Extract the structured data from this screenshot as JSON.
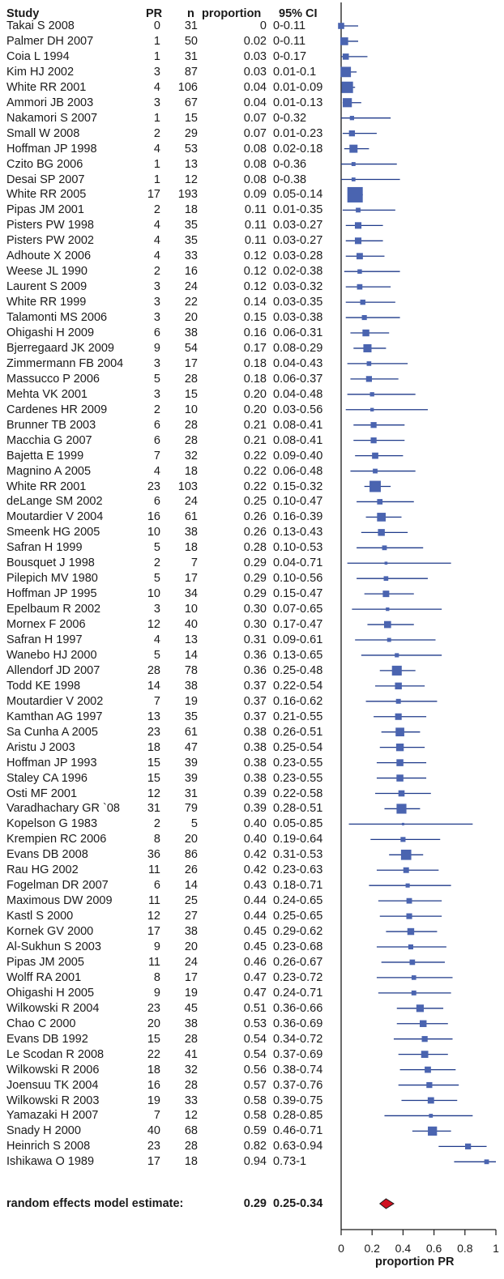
{
  "chart_data": {
    "type": "forest",
    "headers": {
      "study": "Study",
      "pr": "PR",
      "n": "n",
      "proportion": "proportion",
      "ci": "95% CI"
    },
    "studies": [
      {
        "study": "Takai S  2008",
        "pr": "0",
        "n": "31",
        "proportion_label": "0",
        "ci_label": "0-0.11",
        "p": 0,
        "lo": 0,
        "hi": 0.11
      },
      {
        "study": "Palmer DH  2007",
        "pr": "1",
        "n": "50",
        "proportion_label": "0.02",
        "ci_label": "0-0.11",
        "p": 0.02,
        "lo": 0,
        "hi": 0.11
      },
      {
        "study": "Coia L  1994",
        "pr": "1",
        "n": "31",
        "proportion_label": "0.03",
        "ci_label": "0-0.17",
        "p": 0.03,
        "lo": 0,
        "hi": 0.17
      },
      {
        "study": "Kim HJ  2002",
        "pr": "3",
        "n": "87",
        "proportion_label": "0.03",
        "ci_label": "0.01-0.1",
        "p": 0.03,
        "lo": 0.01,
        "hi": 0.1
      },
      {
        "study": "White RR  2001",
        "pr": "4",
        "n": "106",
        "proportion_label": "0.04",
        "ci_label": "0.01-0.09",
        "p": 0.04,
        "lo": 0.01,
        "hi": 0.09
      },
      {
        "study": "Ammori JB  2003",
        "pr": "3",
        "n": "67",
        "proportion_label": "0.04",
        "ci_label": "0.01-0.13",
        "p": 0.04,
        "lo": 0.01,
        "hi": 0.13
      },
      {
        "study": "Nakamori S  2007",
        "pr": "1",
        "n": "15",
        "proportion_label": "0.07",
        "ci_label": "0-0.32",
        "p": 0.07,
        "lo": 0,
        "hi": 0.32
      },
      {
        "study": "Small W  2008",
        "pr": "2",
        "n": "29",
        "proportion_label": "0.07",
        "ci_label": "0.01-0.23",
        "p": 0.07,
        "lo": 0.01,
        "hi": 0.23
      },
      {
        "study": "Hoffman JP  1998",
        "pr": "4",
        "n": "53",
        "proportion_label": "0.08",
        "ci_label": "0.02-0.18",
        "p": 0.08,
        "lo": 0.02,
        "hi": 0.18
      },
      {
        "study": "Czito BG  2006",
        "pr": "1",
        "n": "13",
        "proportion_label": "0.08",
        "ci_label": "0-0.36",
        "p": 0.08,
        "lo": 0,
        "hi": 0.36
      },
      {
        "study": "Desai SP  2007",
        "pr": "1",
        "n": "12",
        "proportion_label": "0.08",
        "ci_label": "0-0.38",
        "p": 0.08,
        "lo": 0,
        "hi": 0.38
      },
      {
        "study": "White RR    2005",
        "pr": "17",
        "n": "193",
        "proportion_label": "0.09",
        "ci_label": "0.05-0.14",
        "p": 0.09,
        "lo": 0.05,
        "hi": 0.14
      },
      {
        "study": "Pipas JM  2001",
        "pr": "2",
        "n": "18",
        "proportion_label": "0.11",
        "ci_label": "0.01-0.35",
        "p": 0.11,
        "lo": 0.01,
        "hi": 0.35
      },
      {
        "study": "Pisters PW  1998",
        "pr": "4",
        "n": "35",
        "proportion_label": "0.11",
        "ci_label": "0.03-0.27",
        "p": 0.11,
        "lo": 0.03,
        "hi": 0.27
      },
      {
        "study": "Pisters PW  2002",
        "pr": "4",
        "n": "35",
        "proportion_label": "0.11",
        "ci_label": "0.03-0.27",
        "p": 0.11,
        "lo": 0.03,
        "hi": 0.27
      },
      {
        "study": "Adhoute X   2006",
        "pr": "4",
        "n": "33",
        "proportion_label": "0.12",
        "ci_label": "0.03-0.28",
        "p": 0.12,
        "lo": 0.03,
        "hi": 0.28
      },
      {
        "study": "Weese JL  1990",
        "pr": "2",
        "n": "16",
        "proportion_label": "0.12",
        "ci_label": "0.02-0.38",
        "p": 0.12,
        "lo": 0.02,
        "hi": 0.38
      },
      {
        "study": "Laurent S  2009",
        "pr": "3",
        "n": "24",
        "proportion_label": "0.12",
        "ci_label": "0.03-0.32",
        "p": 0.12,
        "lo": 0.03,
        "hi": 0.32
      },
      {
        "study": "White RR  1999",
        "pr": "3",
        "n": "22",
        "proportion_label": "0.14",
        "ci_label": "0.03-0.35",
        "p": 0.14,
        "lo": 0.03,
        "hi": 0.35
      },
      {
        "study": "Talamonti MS  2006",
        "pr": "3",
        "n": "20",
        "proportion_label": "0.15",
        "ci_label": "0.03-0.38",
        "p": 0.15,
        "lo": 0.03,
        "hi": 0.38
      },
      {
        "study": "Ohigashi H  2009",
        "pr": "6",
        "n": "38",
        "proportion_label": "0.16",
        "ci_label": "0.06-0.31",
        "p": 0.16,
        "lo": 0.06,
        "hi": 0.31
      },
      {
        "study": "Bjerregaard JK  2009",
        "pr": "9",
        "n": "54",
        "proportion_label": "0.17",
        "ci_label": "0.08-0.29",
        "p": 0.17,
        "lo": 0.08,
        "hi": 0.29
      },
      {
        "study": "Zimmermann FB  2004",
        "pr": "3",
        "n": "17",
        "proportion_label": "0.18",
        "ci_label": "0.04-0.43",
        "p": 0.18,
        "lo": 0.04,
        "hi": 0.43
      },
      {
        "study": "Massucco P  2006",
        "pr": "5",
        "n": "28",
        "proportion_label": "0.18",
        "ci_label": "0.06-0.37",
        "p": 0.18,
        "lo": 0.06,
        "hi": 0.37
      },
      {
        "study": "Mehta  VK  2001",
        "pr": "3",
        "n": "15",
        "proportion_label": "0.20",
        "ci_label": "0.04-0.48",
        "p": 0.2,
        "lo": 0.04,
        "hi": 0.48
      },
      {
        "study": "Cardenes HR  2009",
        "pr": "2",
        "n": "10",
        "proportion_label": "0.20",
        "ci_label": "0.03-0.56",
        "p": 0.2,
        "lo": 0.03,
        "hi": 0.56
      },
      {
        "study": "Brunner TB  2003",
        "pr": "6",
        "n": "28",
        "proportion_label": "0.21",
        "ci_label": "0.08-0.41",
        "p": 0.21,
        "lo": 0.08,
        "hi": 0.41
      },
      {
        "study": "Macchia G  2007",
        "pr": "6",
        "n": "28",
        "proportion_label": "0.21",
        "ci_label": "0.08-0.41",
        "p": 0.21,
        "lo": 0.08,
        "hi": 0.41
      },
      {
        "study": "Bajetta E  1999",
        "pr": "7",
        "n": "32",
        "proportion_label": "0.22",
        "ci_label": "0.09-0.40",
        "p": 0.22,
        "lo": 0.09,
        "hi": 0.4
      },
      {
        "study": "Magnino A  2005",
        "pr": "4",
        "n": "18",
        "proportion_label": "0.22",
        "ci_label": "0.06-0.48",
        "p": 0.22,
        "lo": 0.06,
        "hi": 0.48
      },
      {
        "study": "White RR  2001",
        "pr": "23",
        "n": "103",
        "proportion_label": "0.22",
        "ci_label": "0.15-0.32",
        "p": 0.22,
        "lo": 0.15,
        "hi": 0.32
      },
      {
        "study": "deLange SM  2002",
        "pr": "6",
        "n": "24",
        "proportion_label": "0.25",
        "ci_label": "0.10-0.47",
        "p": 0.25,
        "lo": 0.1,
        "hi": 0.47
      },
      {
        "study": "Moutardier V  2004",
        "pr": "16",
        "n": "61",
        "proportion_label": "0.26",
        "ci_label": "0.16-0.39",
        "p": 0.26,
        "lo": 0.16,
        "hi": 0.39
      },
      {
        "study": "Smeenk HG  2005",
        "pr": "10",
        "n": "38",
        "proportion_label": "0.26",
        "ci_label": "0.13-0.43",
        "p": 0.26,
        "lo": 0.13,
        "hi": 0.43
      },
      {
        "study": "Safran H   1999",
        "pr": "5",
        "n": "18",
        "proportion_label": "0.28",
        "ci_label": "0.10-0.53",
        "p": 0.28,
        "lo": 0.1,
        "hi": 0.53
      },
      {
        "study": "Bousquet J  1998",
        "pr": "2",
        "n": "7",
        "proportion_label": "0.29",
        "ci_label": "0.04-0.71",
        "p": 0.29,
        "lo": 0.04,
        "hi": 0.71
      },
      {
        "study": "Pilepich MV   1980",
        "pr": "5",
        "n": "17",
        "proportion_label": "0.29",
        "ci_label": "0.10-0.56",
        "p": 0.29,
        "lo": 0.1,
        "hi": 0.56
      },
      {
        "study": "Hoffman JP  1995",
        "pr": "10",
        "n": "34",
        "proportion_label": "0.29",
        "ci_label": "0.15-0.47",
        "p": 0.29,
        "lo": 0.15,
        "hi": 0.47
      },
      {
        "study": "Epelbaum R  2002",
        "pr": "3",
        "n": "10",
        "proportion_label": "0.30",
        "ci_label": "0.07-0.65",
        "p": 0.3,
        "lo": 0.07,
        "hi": 0.65
      },
      {
        "study": "Mornex F  2006",
        "pr": "12",
        "n": "40",
        "proportion_label": "0.30",
        "ci_label": "0.17-0.47",
        "p": 0.3,
        "lo": 0.17,
        "hi": 0.47
      },
      {
        "study": "Safran H  1997",
        "pr": "4",
        "n": "13",
        "proportion_label": "0.31",
        "ci_label": "0.09-0.61",
        "p": 0.31,
        "lo": 0.09,
        "hi": 0.61
      },
      {
        "study": "Wanebo HJ  2000",
        "pr": "5",
        "n": "14",
        "proportion_label": "0.36",
        "ci_label": "0.13-0.65",
        "p": 0.36,
        "lo": 0.13,
        "hi": 0.65
      },
      {
        "study": "Allendorf JD  2007",
        "pr": "28",
        "n": "78",
        "proportion_label": "0.36",
        "ci_label": "0.25-0.48",
        "p": 0.36,
        "lo": 0.25,
        "hi": 0.48
      },
      {
        "study": "Todd KE  1998",
        "pr": "14",
        "n": "38",
        "proportion_label": "0.37",
        "ci_label": "0.22-0.54",
        "p": 0.37,
        "lo": 0.22,
        "hi": 0.54
      },
      {
        "study": "Moutardier V  2002",
        "pr": "7",
        "n": "19",
        "proportion_label": "0.37",
        "ci_label": "0.16-0.62",
        "p": 0.37,
        "lo": 0.16,
        "hi": 0.62
      },
      {
        "study": "Kamthan AG  1997",
        "pr": "13",
        "n": "35",
        "proportion_label": "0.37",
        "ci_label": "0.21-0.55",
        "p": 0.37,
        "lo": 0.21,
        "hi": 0.55
      },
      {
        "study": "Sa Cunha A  2005",
        "pr": "23",
        "n": "61",
        "proportion_label": "0.38",
        "ci_label": "0.26-0.51",
        "p": 0.38,
        "lo": 0.26,
        "hi": 0.51
      },
      {
        "study": "Aristu J  2003",
        "pr": "18",
        "n": "47",
        "proportion_label": "0.38",
        "ci_label": "0.25-0.54",
        "p": 0.38,
        "lo": 0.25,
        "hi": 0.54
      },
      {
        "study": "Hoffman JP  1993",
        "pr": "15",
        "n": "39",
        "proportion_label": "0.38",
        "ci_label": "0.23-0.55",
        "p": 0.38,
        "lo": 0.23,
        "hi": 0.55
      },
      {
        "study": "Staley CA  1996",
        "pr": "15",
        "n": "39",
        "proportion_label": "0.38",
        "ci_label": "0.23-0.55",
        "p": 0.38,
        "lo": 0.23,
        "hi": 0.55
      },
      {
        "study": "Osti MF  2001",
        "pr": "12",
        "n": "31",
        "proportion_label": "0.39",
        "ci_label": "0.22-0.58",
        "p": 0.39,
        "lo": 0.22,
        "hi": 0.58
      },
      {
        "study": "Varadhachary GR  `08",
        "pr": "31",
        "n": "79",
        "proportion_label": "0.39",
        "ci_label": "0.28-0.51",
        "p": 0.39,
        "lo": 0.28,
        "hi": 0.51
      },
      {
        "study": "Kopelson G  1983",
        "pr": "2",
        "n": "5",
        "proportion_label": "0.40",
        "ci_label": "0.05-0.85",
        "p": 0.4,
        "lo": 0.05,
        "hi": 0.85
      },
      {
        "study": "Krempien RC  2006",
        "pr": "8",
        "n": "20",
        "proportion_label": "0.40",
        "ci_label": "0.19-0.64",
        "p": 0.4,
        "lo": 0.19,
        "hi": 0.64
      },
      {
        "study": "Evans DB  2008",
        "pr": "36",
        "n": "86",
        "proportion_label": "0.42",
        "ci_label": "0.31-0.53",
        "p": 0.42,
        "lo": 0.31,
        "hi": 0.53
      },
      {
        "study": "Rau HG  2002",
        "pr": "11",
        "n": "26",
        "proportion_label": "0.42",
        "ci_label": "0.23-0.63",
        "p": 0.42,
        "lo": 0.23,
        "hi": 0.63
      },
      {
        "study": "Fogelman DR  2007",
        "pr": "6",
        "n": "14",
        "proportion_label": "0.43",
        "ci_label": "0.18-0.71",
        "p": 0.43,
        "lo": 0.18,
        "hi": 0.71
      },
      {
        "study": "Maximous DW  2009",
        "pr": "11",
        "n": "25",
        "proportion_label": "0.44",
        "ci_label": "0.24-0.65",
        "p": 0.44,
        "lo": 0.24,
        "hi": 0.65
      },
      {
        "study": "Kastl S  2000",
        "pr": "12",
        "n": "27",
        "proportion_label": "0.44",
        "ci_label": "0.25-0.65",
        "p": 0.44,
        "lo": 0.25,
        "hi": 0.65
      },
      {
        "study": "Kornek GV  2000",
        "pr": "17",
        "n": "38",
        "proportion_label": "0.45",
        "ci_label": "0.29-0.62",
        "p": 0.45,
        "lo": 0.29,
        "hi": 0.62
      },
      {
        "study": "Al-Sukhun S  2003",
        "pr": "9",
        "n": "20",
        "proportion_label": "0.45",
        "ci_label": "0.23-0.68",
        "p": 0.45,
        "lo": 0.23,
        "hi": 0.68
      },
      {
        "study": "Pipas JM  2005",
        "pr": "11",
        "n": "24",
        "proportion_label": "0.46",
        "ci_label": "0.26-0.67",
        "p": 0.46,
        "lo": 0.26,
        "hi": 0.67
      },
      {
        "study": "Wolff RA  2001",
        "pr": "8",
        "n": "17",
        "proportion_label": "0.47",
        "ci_label": "0.23-0.72",
        "p": 0.47,
        "lo": 0.23,
        "hi": 0.72
      },
      {
        "study": "Ohigashi H  2005",
        "pr": "9",
        "n": "19",
        "proportion_label": "0.47",
        "ci_label": "0.24-0.71",
        "p": 0.47,
        "lo": 0.24,
        "hi": 0.71
      },
      {
        "study": "Wilkowski R  2004",
        "pr": "23",
        "n": "45",
        "proportion_label": "0.51",
        "ci_label": "0.36-0.66",
        "p": 0.51,
        "lo": 0.36,
        "hi": 0.66
      },
      {
        "study": "Chao C  2000",
        "pr": "20",
        "n": "38",
        "proportion_label": "0.53",
        "ci_label": "0.36-0.69",
        "p": 0.53,
        "lo": 0.36,
        "hi": 0.69
      },
      {
        "study": "Evans DB   1992",
        "pr": "15",
        "n": "28",
        "proportion_label": "0.54",
        "ci_label": "0.34-0.72",
        "p": 0.54,
        "lo": 0.34,
        "hi": 0.72
      },
      {
        "study": "Le Scodan R  2008",
        "pr": "22",
        "n": "41",
        "proportion_label": "0.54",
        "ci_label": "0.37-0.69",
        "p": 0.54,
        "lo": 0.37,
        "hi": 0.69
      },
      {
        "study": "Wilkowski R  2006",
        "pr": "18",
        "n": "32",
        "proportion_label": "0.56",
        "ci_label": "0.38-0.74",
        "p": 0.56,
        "lo": 0.38,
        "hi": 0.74
      },
      {
        "study": "Joensuu TK  2004",
        "pr": "16",
        "n": "28",
        "proportion_label": "0.57",
        "ci_label": "0.37-0.76",
        "p": 0.57,
        "lo": 0.37,
        "hi": 0.76
      },
      {
        "study": "Wilkowski R  2003",
        "pr": "19",
        "n": "33",
        "proportion_label": "0.58",
        "ci_label": "0.39-0.75",
        "p": 0.58,
        "lo": 0.39,
        "hi": 0.75
      },
      {
        "study": "Yamazaki H  2007",
        "pr": "7",
        "n": "12",
        "proportion_label": "0.58",
        "ci_label": "0.28-0.85",
        "p": 0.58,
        "lo": 0.28,
        "hi": 0.85
      },
      {
        "study": "Snady H  2000",
        "pr": "40",
        "n": "68",
        "proportion_label": "0.59",
        "ci_label": "0.46-0.71",
        "p": 0.59,
        "lo": 0.46,
        "hi": 0.71
      },
      {
        "study": "Heinrich S  2008",
        "pr": "23",
        "n": "28",
        "proportion_label": "0.82",
        "ci_label": "0.63-0.94",
        "p": 0.82,
        "lo": 0.63,
        "hi": 0.94
      },
      {
        "study": "Ishikawa O  1989",
        "pr": "17",
        "n": "18",
        "proportion_label": "0.94",
        "ci_label": "0.73-1",
        "p": 0.94,
        "lo": 0.73,
        "hi": 1
      }
    ],
    "summary": {
      "label": "random effects model estimate:",
      "proportion_label": "0.29",
      "ci_label": "0.25-0.34",
      "p": 0.29,
      "lo": 0.25,
      "hi": 0.34
    },
    "x_axis": {
      "label": "proportion PR",
      "range": [
        0,
        1
      ],
      "ticks": [
        0,
        0.2,
        0.4,
        0.6,
        0.8,
        1
      ],
      "tick_labels": [
        "0",
        "0.2",
        "0.4",
        "0.6",
        "0.8",
        "1"
      ]
    },
    "colors": {
      "marker": "#4a64b0",
      "ci_line": "#1f3a8a",
      "summary_diamond": "#d01020",
      "axis": "#1a1a1a"
    }
  }
}
